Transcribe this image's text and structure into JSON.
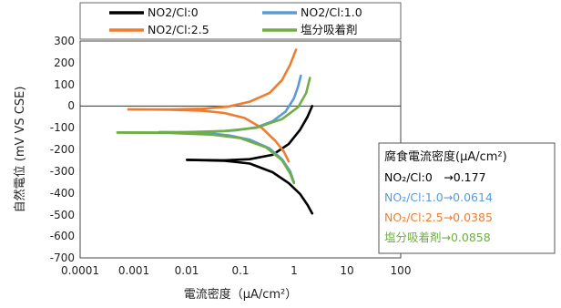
{
  "chart_data": {
    "type": "line",
    "xscale": "log",
    "xlim": [
      0.0001,
      100
    ],
    "ylim": [
      -700,
      300
    ],
    "xlabel": "電流密度（μA/cm²）",
    "ylabel": "自然電位 (mV VS CSE)",
    "xticks": [
      "0.0001",
      "0.001",
      "0.01",
      "0.1",
      "1",
      "10",
      "100"
    ],
    "yticks": [
      "300",
      "200",
      "100",
      "0",
      "-100",
      "-200",
      "-300",
      "-400",
      "-500",
      "-600",
      "-700"
    ],
    "legend_position": "top",
    "grid": false,
    "series": [
      {
        "name": "NO2/Cl:0",
        "color": "#000000",
        "anodic": [
          [
            0.01,
            -248
          ],
          [
            0.05,
            -250
          ],
          [
            0.15,
            -245
          ],
          [
            0.4,
            -225
          ],
          [
            0.8,
            -175
          ],
          [
            1.3,
            -110
          ],
          [
            1.8,
            -50
          ],
          [
            2.2,
            0
          ]
        ],
        "cathodic": [
          [
            0.01,
            -248
          ],
          [
            0.05,
            -252
          ],
          [
            0.15,
            -265
          ],
          [
            0.4,
            -305
          ],
          [
            0.8,
            -355
          ],
          [
            1.3,
            -405
          ],
          [
            1.8,
            -455
          ],
          [
            2.2,
            -495
          ]
        ]
      },
      {
        "name": "NO2/Cl:1.0",
        "color": "#5b9bd5",
        "anodic": [
          [
            0.003,
            -120
          ],
          [
            0.02,
            -120
          ],
          [
            0.08,
            -112
          ],
          [
            0.2,
            -98
          ],
          [
            0.4,
            -70
          ],
          [
            0.7,
            -25
          ],
          [
            1.0,
            35
          ],
          [
            1.2,
            90
          ],
          [
            1.35,
            140
          ]
        ],
        "cathodic": [
          [
            0.003,
            -120
          ],
          [
            0.02,
            -122
          ],
          [
            0.06,
            -135
          ],
          [
            0.15,
            -155
          ],
          [
            0.35,
            -195
          ],
          [
            0.6,
            -245
          ],
          [
            0.85,
            -300
          ],
          [
            1.0,
            -350
          ]
        ]
      },
      {
        "name": "NO2/Cl:2.5",
        "color": "#ed7d31",
        "anodic": [
          [
            0.0008,
            -15
          ],
          [
            0.005,
            -15
          ],
          [
            0.02,
            -12
          ],
          [
            0.06,
            -2
          ],
          [
            0.15,
            20
          ],
          [
            0.35,
            60
          ],
          [
            0.6,
            120
          ],
          [
            0.85,
            190
          ],
          [
            1.1,
            260
          ]
        ],
        "cathodic": [
          [
            0.0008,
            -15
          ],
          [
            0.005,
            -17
          ],
          [
            0.02,
            -22
          ],
          [
            0.05,
            -32
          ],
          [
            0.12,
            -55
          ],
          [
            0.25,
            -100
          ],
          [
            0.45,
            -160
          ],
          [
            0.65,
            -210
          ],
          [
            0.8,
            -255
          ]
        ]
      },
      {
        "name": "塩分吸着剤",
        "color": "#70ad47",
        "anodic": [
          [
            0.0005,
            -122
          ],
          [
            0.005,
            -122
          ],
          [
            0.05,
            -115
          ],
          [
            0.2,
            -100
          ],
          [
            0.6,
            -60
          ],
          [
            1.2,
            -5
          ],
          [
            1.7,
            60
          ],
          [
            2.0,
            130
          ]
        ],
        "cathodic": [
          [
            0.0005,
            -122
          ],
          [
            0.005,
            -124
          ],
          [
            0.03,
            -132
          ],
          [
            0.1,
            -148
          ],
          [
            0.3,
            -190
          ],
          [
            0.6,
            -250
          ],
          [
            0.85,
            -310
          ],
          [
            1.0,
            -355
          ]
        ]
      }
    ],
    "annotation": {
      "title": "腐食電流密度(μA/cm²)",
      "lines": [
        {
          "text": "NO₂/Cl:0　→0.177",
          "color": "#000000"
        },
        {
          "text": "NO₂/Cl:1.0→0.0614",
          "color": "#5b9bd5"
        },
        {
          "text": "NO₂/Cl:2.5→0.0385",
          "color": "#ed7d31"
        },
        {
          "text": "塩分吸着剤→0.0858",
          "color": "#70ad47"
        }
      ]
    }
  }
}
